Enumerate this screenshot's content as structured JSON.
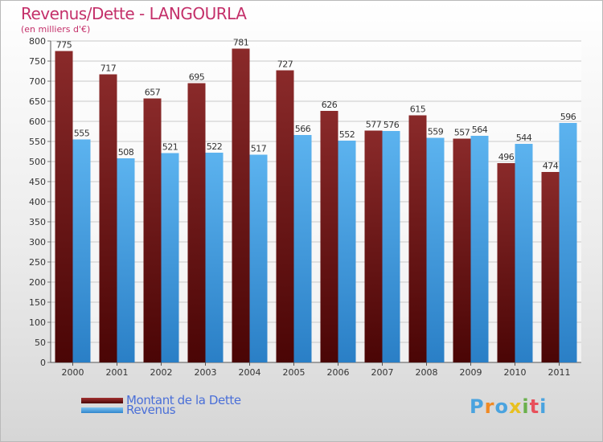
{
  "title": "Revenus/Dette - LANGOURLA",
  "subtitle": "(en milliers d'€)",
  "logo": {
    "letters": [
      "P",
      "r",
      "o",
      "x",
      "i",
      "t",
      "i"
    ],
    "colors": [
      "#4aa3df",
      "#f08a24",
      "#4aa3df",
      "#e8c020",
      "#6ab04c",
      "#e8505b",
      "#4aa3df"
    ]
  },
  "colors": {
    "dette": "#7a1a1a",
    "revenus": "#4da6e8",
    "text": "#c4306a",
    "legend_text": "#4a6fd8"
  },
  "chart_data": {
    "type": "bar",
    "title": "Revenus/Dette - LANGOURLA",
    "ylabel": "(en milliers d'€)",
    "categories": [
      "2000",
      "2001",
      "2002",
      "2003",
      "2004",
      "2005",
      "2006",
      "2007",
      "2008",
      "2009",
      "2010",
      "2011"
    ],
    "series": [
      {
        "name": "Montant de la Dette",
        "values": [
          775,
          717,
          657,
          695,
          781,
          727,
          626,
          577,
          615,
          557,
          496,
          474
        ]
      },
      {
        "name": "Revenus",
        "values": [
          555,
          508,
          521,
          522,
          517,
          566,
          552,
          576,
          559,
          564,
          544,
          596
        ]
      }
    ],
    "ylim": [
      0,
      800
    ],
    "yticks": [
      0,
      50,
      100,
      150,
      200,
      250,
      300,
      350,
      400,
      450,
      500,
      550,
      600,
      650,
      700,
      750,
      800
    ],
    "grid": true,
    "legend": "bottom-left"
  }
}
